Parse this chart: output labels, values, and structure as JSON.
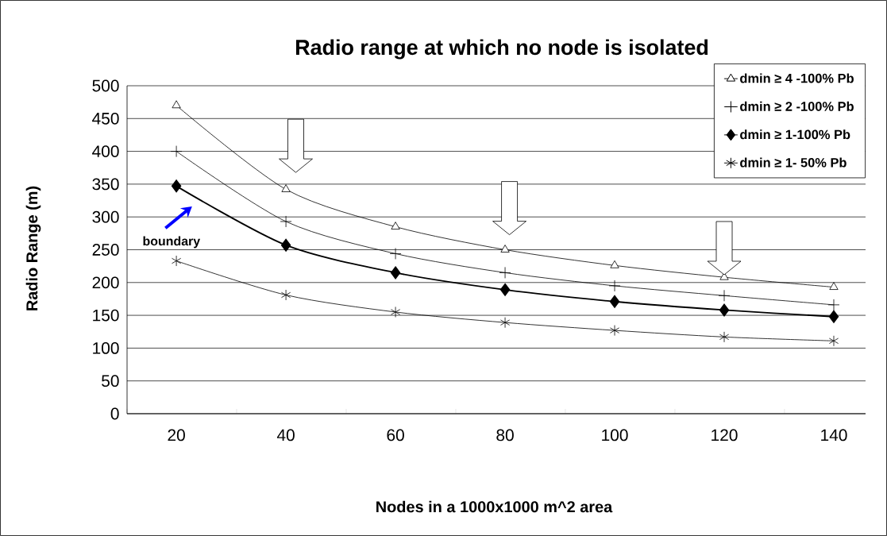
{
  "chart_data": {
    "type": "line",
    "title": "Radio range at which no node is isolated",
    "xlabel": "Nodes in a 1000x1000 m^2 area",
    "ylabel": "Radio Range (m)",
    "categories": [
      "20",
      "40",
      "60",
      "80",
      "100",
      "120",
      "140"
    ],
    "series": [
      {
        "name": "dmin ≥ 4 -100% Pb",
        "color": "#000000",
        "marker": "triangle",
        "values": [
          470,
          342,
          285,
          250,
          226,
          208,
          193
        ]
      },
      {
        "name": "dmin ≥ 2 -100% Pb",
        "color": "#000000",
        "marker": "cross",
        "values": [
          400,
          293,
          244,
          215,
          195,
          180,
          166
        ]
      },
      {
        "name": "dmin ≥ 1-100% Pb",
        "color": "#000000",
        "marker": "diamond",
        "values": [
          347,
          257,
          215,
          189,
          171,
          158,
          148
        ]
      },
      {
        "name": "dmin ≥ 1- 50% Pb",
        "color": "#000000",
        "marker": "cross",
        "values": [
          233,
          181,
          155,
          139,
          127,
          117,
          111
        ]
      }
    ],
    "ylim": [
      0,
      500
    ],
    "yticks": [
      0,
      50,
      100,
      150,
      200,
      250,
      300,
      350,
      400,
      450,
      500
    ],
    "grid": "y",
    "legend": "top right",
    "annotations": [
      "boundary"
    ]
  }
}
